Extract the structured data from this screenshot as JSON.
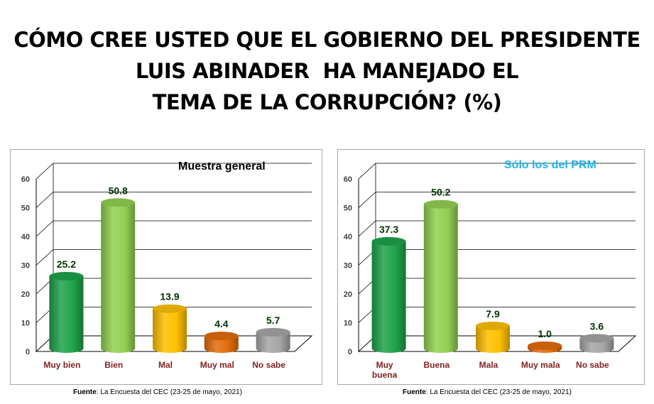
{
  "title_lines": [
    "CÓMO CREE USTED QUE EL GOBIERNO DEL PRESIDENTE",
    "LUIS ABINADER  HA MANEJADO EL",
    "TEMA DE LA CORRUPCIÓN? (%)"
  ],
  "chart_data": [
    {
      "type": "bar",
      "title": "Muestra general",
      "categories": [
        "Muy bien",
        "Bien",
        "Mal",
        "Muy mal",
        "No sabe"
      ],
      "values": [
        25.2,
        50.8,
        13.9,
        4.4,
        5.7
      ],
      "value_labels": [
        "25.2",
        "50.8",
        "13.9",
        "4.4",
        "5.7"
      ],
      "colors": [
        "#1fa34a",
        "#92d050",
        "#ffc000",
        "#e36c0a",
        "#a6a6a6"
      ],
      "ylim": [
        0,
        60
      ],
      "yticks": [
        "0",
        "10",
        "20",
        "30",
        "40",
        "50",
        "60"
      ],
      "xlabel": "",
      "ylabel": "",
      "grid": true,
      "title_color": "#000000"
    },
    {
      "type": "bar",
      "title": "Sólo los del PRM",
      "categories": [
        [
          "Muy",
          "buena"
        ],
        [
          "Buena"
        ],
        [
          "Mala"
        ],
        [
          "Muy mala"
        ],
        [
          "No sabe"
        ]
      ],
      "values": [
        37.3,
        50.2,
        7.9,
        1.0,
        3.6
      ],
      "value_labels": [
        "37.3",
        "50.2",
        "7.9",
        "1.0",
        "3.6"
      ],
      "colors": [
        "#1fa34a",
        "#92d050",
        "#ffc000",
        "#e36c0a",
        "#a6a6a6"
      ],
      "ylim": [
        0,
        60
      ],
      "yticks": [
        "0",
        "10",
        "20",
        "30",
        "40",
        "50",
        "60"
      ],
      "xlabel": "",
      "ylabel": "",
      "grid": true,
      "title_color": "#1fb3e6"
    }
  ],
  "source": [
    {
      "label": "Fuente",
      "text": ": La Encuesta del CEC (23-25 de mayo, 2021)"
    },
    {
      "label": "Fuente",
      "text": ": La Encuesta del CEC (23-25 de mayo, 2021)"
    }
  ]
}
